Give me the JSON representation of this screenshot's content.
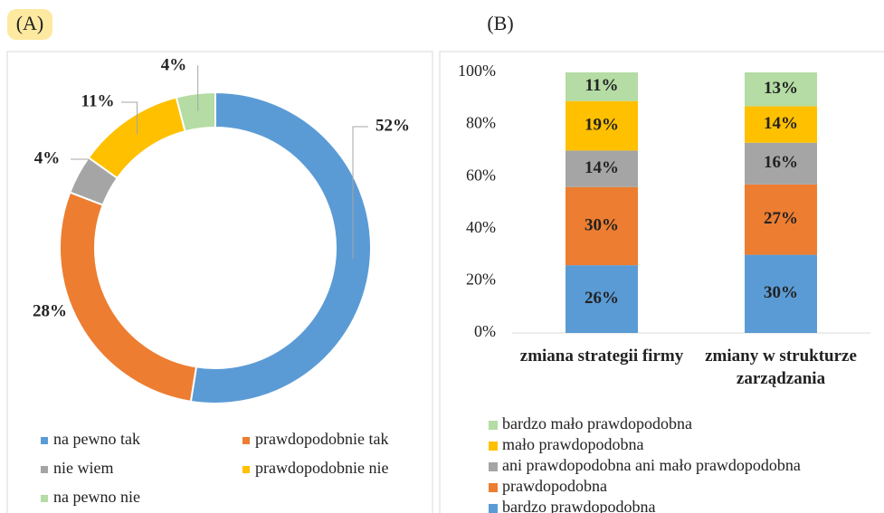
{
  "chart_data": [
    {
      "type": "donut",
      "title": "(A)",
      "categories": [
        "na pewno tak",
        "prawdopodobnie tak",
        "nie wiem",
        "prawdopodobnie nie",
        "na pewno nie"
      ],
      "values": [
        52,
        28,
        4,
        11,
        4
      ],
      "value_labels": [
        "52%",
        "28%",
        "4%",
        "11%",
        "4%"
      ],
      "colors": [
        "#5b9bd5",
        "#ed7d31",
        "#a5a5a5",
        "#ffc000",
        "#b4dca4"
      ]
    },
    {
      "type": "stacked_bar",
      "title": "(B)",
      "categories": [
        "zmiana strategii firmy",
        "zmiany w strukturze zarządzania"
      ],
      "series": [
        {
          "name": "bardzo prawdopodobna",
          "color": "#5b9bd5",
          "values": [
            26,
            30
          ],
          "value_labels": [
            "26%",
            "30%"
          ]
        },
        {
          "name": "prawdopodobna",
          "color": "#ed7d31",
          "values": [
            30,
            27
          ],
          "value_labels": [
            "30%",
            "27%"
          ]
        },
        {
          "name": "ani prawdopodobna ani mało prawdopodobna",
          "color": "#a5a5a5",
          "values": [
            14,
            16
          ],
          "value_labels": [
            "14%",
            "16%"
          ]
        },
        {
          "name": "mało prawdopodobna",
          "color": "#ffc000",
          "values": [
            19,
            14
          ],
          "value_labels": [
            "19%",
            "14%"
          ]
        },
        {
          "name": "bardzo mało prawdopodobna",
          "color": "#b4dca4",
          "values": [
            11,
            13
          ],
          "value_labels": [
            "11%",
            "13%"
          ]
        }
      ],
      "ylim": [
        0,
        100
      ],
      "yticks": [
        {
          "value": 0,
          "label": "0%"
        },
        {
          "value": 20,
          "label": "20%"
        },
        {
          "value": 40,
          "label": "40%"
        },
        {
          "value": 60,
          "label": "60%"
        },
        {
          "value": 80,
          "label": "80%"
        },
        {
          "value": 100,
          "label": "100%"
        }
      ],
      "grid": false
    }
  ]
}
